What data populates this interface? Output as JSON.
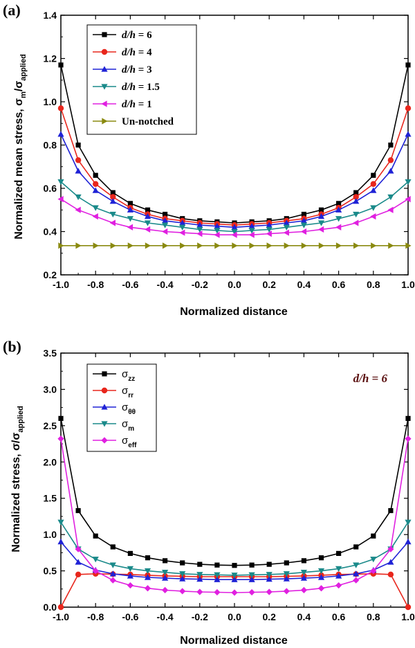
{
  "colors": {
    "black": "#000000",
    "red": "#e8261c",
    "blue": "#1f22d6",
    "teal": "#1a8a8a",
    "magenta": "#e020e0",
    "olive": "#8a8a10"
  },
  "chart_data": [
    {
      "panel_label": "(a)",
      "type": "line",
      "xlabel": "Normalized distance",
      "ylabel_main": "Normalized mean stress, σ",
      "ylabel_sub1": "m",
      "ylabel_mid": "/σ",
      "ylabel_sub2": "applied",
      "xlim": [
        -1.0,
        1.0
      ],
      "ylim": [
        0.2,
        1.4
      ],
      "xticks": [
        -1.0,
        -0.8,
        -0.6,
        -0.4,
        -0.2,
        0.0,
        0.2,
        0.4,
        0.6,
        0.8,
        1.0
      ],
      "xtick_labels": [
        "-1.0",
        "-0.8",
        "-0.6",
        "-0.4",
        "-0.2",
        "0.0",
        "0.2",
        "0.4",
        "0.6",
        "0.8",
        "1.0"
      ],
      "yticks": [
        0.2,
        0.4,
        0.6,
        0.8,
        1.0,
        1.2,
        1.4
      ],
      "ytick_labels": [
        "0.2",
        "0.4",
        "0.6",
        "0.8",
        "1.0",
        "1.2",
        "1.4"
      ],
      "legend_position": "top-left",
      "x": [
        -1.0,
        -0.9,
        -0.8,
        -0.7,
        -0.6,
        -0.5,
        -0.4,
        -0.3,
        -0.2,
        -0.1,
        0.0,
        0.1,
        0.2,
        0.3,
        0.4,
        0.5,
        0.6,
        0.7,
        0.8,
        0.9,
        1.0
      ],
      "series": [
        {
          "name": "d/h = 6",
          "italic": "d/h",
          "rest": " = 6",
          "color": "black",
          "marker": "square",
          "values": [
            1.17,
            0.8,
            0.66,
            0.58,
            0.53,
            0.5,
            0.48,
            0.46,
            0.45,
            0.445,
            0.44,
            0.445,
            0.45,
            0.46,
            0.48,
            0.5,
            0.53,
            0.58,
            0.66,
            0.8,
            1.17
          ]
        },
        {
          "name": "d/h = 4",
          "italic": "d/h",
          "rest": " = 4",
          "color": "red",
          "marker": "circle",
          "values": [
            0.97,
            0.73,
            0.62,
            0.56,
            0.51,
            0.48,
            0.46,
            0.45,
            0.44,
            0.435,
            0.43,
            0.435,
            0.44,
            0.45,
            0.46,
            0.48,
            0.51,
            0.56,
            0.62,
            0.73,
            0.97
          ]
        },
        {
          "name": "d/h = 3",
          "italic": "d/h",
          "rest": " = 3",
          "color": "blue",
          "marker": "triangle-up",
          "values": [
            0.85,
            0.68,
            0.59,
            0.54,
            0.5,
            0.47,
            0.45,
            0.44,
            0.43,
            0.425,
            0.42,
            0.425,
            0.43,
            0.44,
            0.45,
            0.47,
            0.5,
            0.54,
            0.59,
            0.68,
            0.85
          ]
        },
        {
          "name": "d/h = 1.5",
          "italic": "d/h",
          "rest": " = 1.5",
          "color": "teal",
          "marker": "triangle-down",
          "values": [
            0.63,
            0.56,
            0.51,
            0.48,
            0.46,
            0.44,
            0.43,
            0.42,
            0.41,
            0.405,
            0.4,
            0.405,
            0.41,
            0.42,
            0.43,
            0.44,
            0.46,
            0.48,
            0.51,
            0.56,
            0.63
          ]
        },
        {
          "name": "d/h = 1",
          "italic": "d/h",
          "rest": " = 1",
          "color": "magenta",
          "marker": "triangle-left",
          "values": [
            0.55,
            0.5,
            0.47,
            0.44,
            0.42,
            0.41,
            0.4,
            0.395,
            0.39,
            0.385,
            0.385,
            0.385,
            0.39,
            0.395,
            0.4,
            0.41,
            0.42,
            0.44,
            0.47,
            0.5,
            0.55
          ]
        },
        {
          "name": "Un-notched",
          "italic": "",
          "rest": "Un-notched",
          "color": "olive",
          "marker": "triangle-right",
          "values": [
            0.335,
            0.335,
            0.335,
            0.335,
            0.335,
            0.335,
            0.335,
            0.335,
            0.335,
            0.335,
            0.335,
            0.335,
            0.335,
            0.335,
            0.335,
            0.335,
            0.335,
            0.335,
            0.335,
            0.335,
            0.335
          ]
        }
      ]
    },
    {
      "panel_label": "(b)",
      "type": "line",
      "xlabel": "Normalized distance",
      "ylabel_main": "Normalized stress, σ/σ",
      "ylabel_sub2": "applied",
      "annotation": "d/h = 6",
      "xlim": [
        -1.0,
        1.0
      ],
      "ylim": [
        0.0,
        3.5
      ],
      "xticks": [
        -1.0,
        -0.8,
        -0.6,
        -0.4,
        -0.2,
        0.0,
        0.2,
        0.4,
        0.6,
        0.8,
        1.0
      ],
      "xtick_labels": [
        "-1.0",
        "-0.8",
        "-0.6",
        "-0.4",
        "-0.2",
        "0.0",
        "0.2",
        "0.4",
        "0.6",
        "0.8",
        "1.0"
      ],
      "yticks": [
        0.0,
        0.5,
        1.0,
        1.5,
        2.0,
        2.5,
        3.0,
        3.5
      ],
      "ytick_labels": [
        "0.0",
        "0.5",
        "1.0",
        "1.5",
        "2.0",
        "2.5",
        "3.0",
        "3.5"
      ],
      "legend_position": "top-left",
      "x": [
        -1.0,
        -0.9,
        -0.8,
        -0.7,
        -0.6,
        -0.5,
        -0.4,
        -0.3,
        -0.2,
        -0.1,
        0.0,
        0.1,
        0.2,
        0.3,
        0.4,
        0.5,
        0.6,
        0.7,
        0.8,
        0.9,
        1.0
      ],
      "series": [
        {
          "name": "σzz",
          "symbol": "σ",
          "sub": "zz",
          "color": "black",
          "marker": "square",
          "values": [
            2.6,
            1.33,
            0.98,
            0.83,
            0.74,
            0.68,
            0.64,
            0.61,
            0.59,
            0.58,
            0.575,
            0.58,
            0.59,
            0.61,
            0.64,
            0.68,
            0.74,
            0.83,
            0.98,
            1.33,
            2.6
          ]
        },
        {
          "name": "σrr",
          "symbol": "σ",
          "sub": "rr",
          "color": "red",
          "marker": "circle",
          "values": [
            0.0,
            0.45,
            0.46,
            0.455,
            0.45,
            0.44,
            0.43,
            0.425,
            0.42,
            0.42,
            0.42,
            0.42,
            0.42,
            0.425,
            0.43,
            0.44,
            0.45,
            0.455,
            0.46,
            0.45,
            0.0
          ]
        },
        {
          "name": "σθθ",
          "symbol": "σ",
          "sub": "θθ",
          "color": "blue",
          "marker": "triangle-up",
          "values": [
            0.9,
            0.62,
            0.51,
            0.46,
            0.43,
            0.41,
            0.4,
            0.39,
            0.385,
            0.38,
            0.38,
            0.38,
            0.385,
            0.39,
            0.4,
            0.41,
            0.43,
            0.46,
            0.51,
            0.62,
            0.9
          ]
        },
        {
          "name": "σm",
          "symbol": "σ",
          "sub": "m",
          "color": "teal",
          "marker": "triangle-down",
          "values": [
            1.17,
            0.8,
            0.66,
            0.58,
            0.53,
            0.5,
            0.48,
            0.46,
            0.45,
            0.445,
            0.44,
            0.445,
            0.45,
            0.46,
            0.48,
            0.5,
            0.53,
            0.58,
            0.66,
            0.8,
            1.17
          ]
        },
        {
          "name": "σeff",
          "symbol": "σ",
          "sub": "eff",
          "color": "magenta",
          "marker": "diamond",
          "values": [
            2.32,
            0.8,
            0.5,
            0.37,
            0.3,
            0.26,
            0.235,
            0.22,
            0.21,
            0.205,
            0.2,
            0.205,
            0.21,
            0.22,
            0.235,
            0.26,
            0.3,
            0.37,
            0.5,
            0.8,
            2.32
          ]
        }
      ]
    }
  ]
}
